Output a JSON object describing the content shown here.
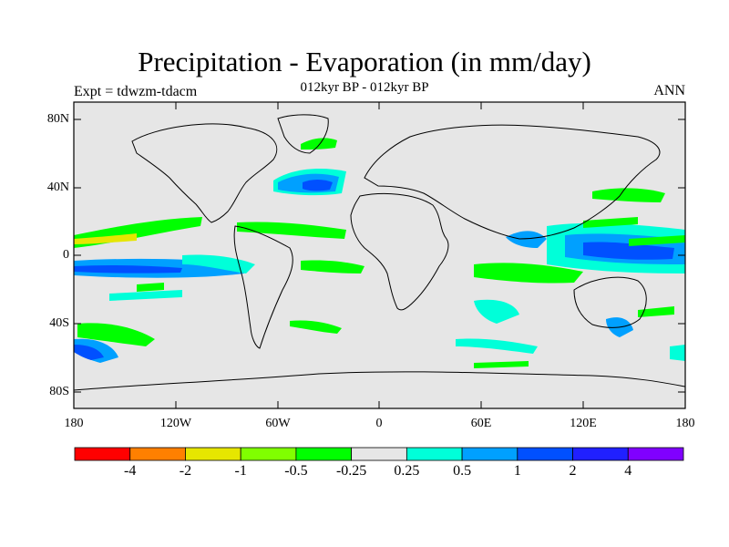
{
  "title": "Precipitation - Evaporation (in mm/day)",
  "subtitle": "012kyr BP - 012kyr BP",
  "left_label": "Expt = tdwzm-tdacm",
  "right_label": "ANN",
  "y_ticks": [
    "80N",
    "40N",
    "0",
    "40S",
    "80S"
  ],
  "x_ticks": [
    "180",
    "120W",
    "60W",
    "0",
    "60E",
    "120E",
    "180"
  ],
  "colorbar": {
    "colors": [
      "#ff0000",
      "#ff8000",
      "#e6e600",
      "#80ff00",
      "#00ff00",
      "#e6e6e6",
      "#00ffd9",
      "#00a0ff",
      "#0050ff",
      "#2020ff",
      "#8000ff"
    ],
    "labels": [
      "-4",
      "-2",
      "-1",
      "-0.5",
      "-0.25",
      "0.25",
      "0.5",
      "1",
      "2",
      "4"
    ]
  },
  "map": {
    "background_color": "#e6e6e6",
    "lat_range": [
      -90,
      90
    ],
    "lon_range": [
      -180,
      180
    ]
  }
}
